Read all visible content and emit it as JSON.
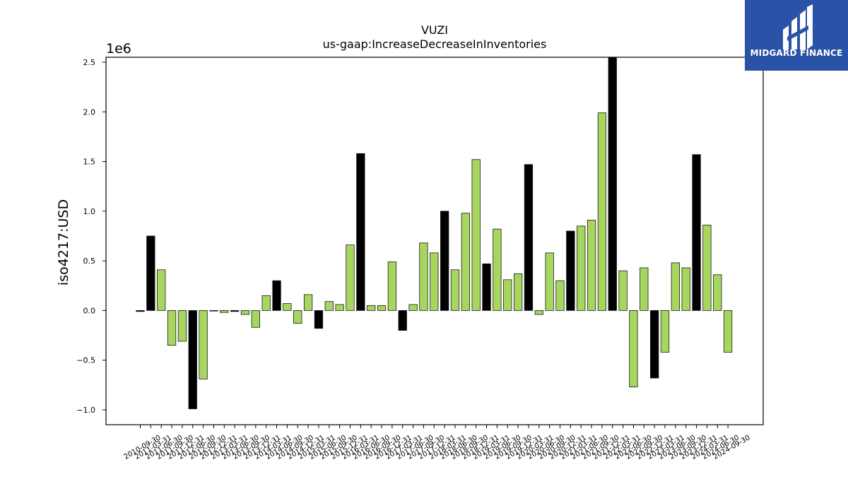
{
  "chart_data": {
    "type": "bar",
    "title": "VUZI",
    "subtitle": "us-gaap:IncreaseDecreaseInInventories",
    "ylabel": "iso4217:USD",
    "xlabel": "",
    "y_multiplier_label": "1e6",
    "ylim": [
      -1.15,
      2.55
    ],
    "yticks": [
      -1.0,
      -0.5,
      0.0,
      0.5,
      1.0,
      1.5,
      2.0,
      2.5
    ],
    "ytick_labels": [
      "−1.0",
      "−0.5",
      "0.0",
      "0.5",
      "1.0",
      "1.5",
      "2.0",
      "2.5"
    ],
    "grid": false,
    "colors": {
      "annual": "#000000",
      "quarterly": "#a6d65e",
      "edge": "#1a1a1a"
    },
    "categories": [
      "2010-09-30",
      "2010-12-31",
      "2011-03-31",
      "2011-06-30",
      "2011-09-30",
      "2011-12-31",
      "2012-03-31",
      "2012-06-30",
      "2012-09-30",
      "2012-12-31",
      "2013-03-31",
      "2013-06-30",
      "2013-09-30",
      "2013-12-31",
      "2014-03-31",
      "2014-06-30",
      "2014-09-30",
      "2014-12-31",
      "2015-03-31",
      "2015-06-30",
      "2015-09-30",
      "2015-12-31",
      "2016-03-31",
      "2016-06-30",
      "2016-09-30",
      "2016-12-31",
      "2017-03-31",
      "2017-06-30",
      "2017-09-30",
      "2017-12-31",
      "2018-03-31",
      "2018-06-30",
      "2018-09-30",
      "2018-12-31",
      "2019-03-31",
      "2019-06-30",
      "2019-09-30",
      "2019-12-31",
      "2020-03-31",
      "2020-06-30",
      "2020-09-30",
      "2020-12-31",
      "2021-03-31",
      "2021-06-30",
      "2021-09-30",
      "2021-12-31",
      "2022-03-31",
      "2022-06-30",
      "2022-09-30",
      "2022-12-31",
      "2023-03-31",
      "2023-06-30",
      "2023-09-30",
      "2023-12-31",
      "2024-03-31",
      "2024-06-30",
      "2024-09-30"
    ],
    "tick_labels": [
      "2010-09-30",
      "2011-03-31",
      "2011-06-30",
      "2011-09-30",
      "2011-12-31",
      "2012-06-30",
      "2012-09-30",
      "2012-12-31",
      "2013-03-31",
      "2013-06-30",
      "2013-09-30",
      "2013-12-31",
      "2014-03-31",
      "2014-06-30",
      "2014-09-30",
      "2014-12-31",
      "2015-03-31",
      "2015-06-30",
      "2015-09-30",
      "2015-12-31",
      "2016-03-31",
      "2016-06-30",
      "2016-09-30",
      "2016-12-31",
      "2017-03-31",
      "2017-06-30",
      "2017-09-30",
      "2017-12-31",
      "2018-03-31",
      "2018-06-30",
      "2018-09-30",
      "2018-12-31",
      "2019-03-31",
      "2019-06-30",
      "2019-09-30",
      "2019-12-31",
      "2020-03-31",
      "2020-06-30",
      "2020-09-30",
      "2020-12-31",
      "2021-03-31",
      "2021-06-30",
      "2021-09-30",
      "2021-12-31",
      "2022-03-31",
      "2022-06-30",
      "2022-09-30",
      "2022-12-31",
      "2023-03-31",
      "2023-06-30",
      "2023-09-30",
      "2023-12-31",
      "2024-03-31",
      "2024-06-30",
      "2024-09-30"
    ],
    "values": [
      -0.01,
      0.75,
      0.41,
      -0.35,
      -0.31,
      -0.99,
      -0.69,
      0.0,
      -0.02,
      -0.01,
      -0.04,
      -0.17,
      0.15,
      0.3,
      0.07,
      -0.13,
      0.16,
      -0.18,
      0.09,
      0.06,
      0.66,
      1.58,
      0.05,
      0.05,
      0.49,
      -0.2,
      0.06,
      0.68,
      0.58,
      1.0,
      0.41,
      0.98,
      1.52,
      0.47,
      0.82,
      0.31,
      0.37,
      1.47,
      -0.04,
      0.58,
      0.3,
      0.8,
      0.85,
      0.91,
      1.99,
      2.55,
      0.4,
      -0.77,
      0.43,
      -0.68,
      -0.42,
      0.48,
      0.43,
      1.57,
      0.86,
      0.36,
      -0.42
    ],
    "annual": [
      true,
      true,
      false,
      false,
      false,
      true,
      false,
      false,
      false,
      true,
      false,
      false,
      false,
      true,
      false,
      false,
      false,
      true,
      false,
      false,
      false,
      true,
      false,
      false,
      false,
      true,
      false,
      false,
      false,
      true,
      false,
      false,
      false,
      true,
      false,
      false,
      false,
      true,
      false,
      false,
      false,
      true,
      false,
      false,
      false,
      true,
      false,
      false,
      false,
      true,
      false,
      false,
      false,
      true,
      false,
      false,
      false
    ]
  },
  "logo": {
    "text": "MIDGARD FINANCE",
    "icon": "midgard-logo-icon"
  }
}
